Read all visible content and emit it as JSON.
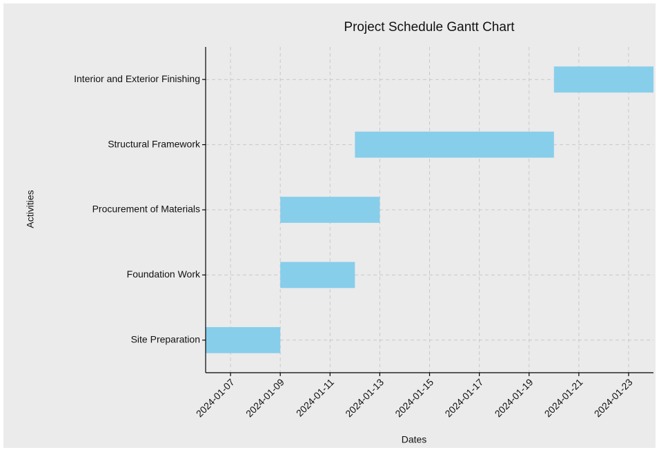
{
  "chart_data": {
    "type": "gantt",
    "title": "Project Schedule Gantt Chart",
    "xlabel": "Dates",
    "ylabel": "Activities",
    "categories": [
      "Site Preparation",
      "Foundation Work",
      "Procurement of Materials",
      "Structural Framework",
      "Interior and Exterior Finishing"
    ],
    "start": [
      "2024-01-06",
      "2024-01-09",
      "2024-01-09",
      "2024-01-12",
      "2024-01-20"
    ],
    "end": [
      "2024-01-09",
      "2024-01-12",
      "2024-01-13",
      "2024-01-20",
      "2024-01-24"
    ],
    "color": "#87ceeb",
    "xlim": [
      "2024-01-06",
      "2024-01-24"
    ],
    "xticks": [
      "2024-01-07",
      "2024-01-09",
      "2024-01-11",
      "2024-01-13",
      "2024-01-15",
      "2024-01-17",
      "2024-01-19",
      "2024-01-21",
      "2024-01-23"
    ],
    "grid": true
  }
}
